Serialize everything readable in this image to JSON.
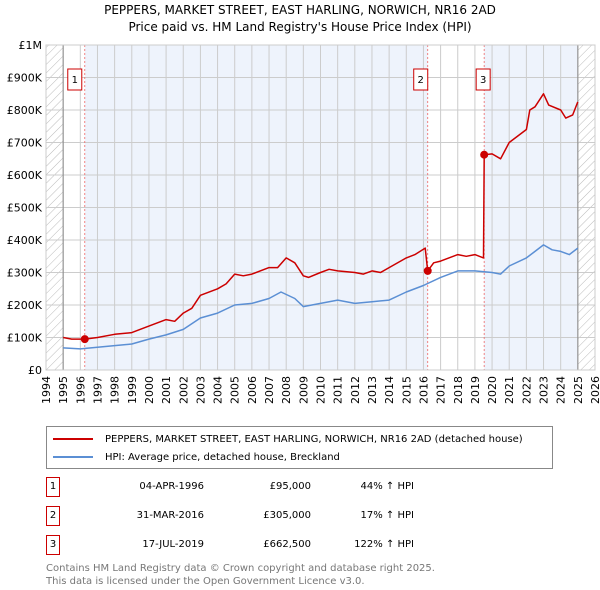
{
  "chart_data": {
    "type": "line",
    "title": "PEPPERS, MARKET STREET, EAST HARLING, NORWICH, NR16 2AD",
    "subtitle": "Price paid vs. HM Land Registry's House Price Index (HPI)",
    "xlim": [
      1994,
      2026
    ],
    "ylim": [
      0,
      1000000
    ],
    "x_ticks": [
      "1994",
      "1995",
      "1996",
      "1997",
      "1998",
      "1999",
      "2000",
      "2001",
      "2002",
      "2003",
      "2004",
      "2005",
      "2006",
      "2007",
      "2008",
      "2009",
      "2010",
      "2011",
      "2012",
      "2013",
      "2014",
      "2015",
      "2016",
      "2017",
      "2018",
      "2019",
      "2020",
      "2021",
      "2022",
      "2023",
      "2024",
      "2025",
      "2026"
    ],
    "y_ticks": [
      {
        "v": 0,
        "label": "£0"
      },
      {
        "v": 100000,
        "label": "£100K"
      },
      {
        "v": 200000,
        "label": "£200K"
      },
      {
        "v": 300000,
        "label": "£300K"
      },
      {
        "v": 400000,
        "label": "£400K"
      },
      {
        "v": 500000,
        "label": "£500K"
      },
      {
        "v": 600000,
        "label": "£600K"
      },
      {
        "v": 700000,
        "label": "£700K"
      },
      {
        "v": 800000,
        "label": "£800K"
      },
      {
        "v": 900000,
        "label": "£900K"
      },
      {
        "v": 1000000,
        "label": "£1M"
      }
    ],
    "grid": true,
    "colors": {
      "property": "#cc0000",
      "hpi": "#5b8fd4",
      "shade": "#eef3fc"
    },
    "series": [
      {
        "name": "PEPPERS, MARKET STREET, EAST HARLING, NORWICH, NR16 2AD (detached house)",
        "color": "#cc0000",
        "x": [
          1995,
          1995.5,
          1996.26,
          1997,
          1998,
          1999,
          2000,
          2001,
          2001.5,
          2002,
          2002.5,
          2003,
          2004,
          2004.5,
          2005,
          2005.5,
          2006,
          2007,
          2007.5,
          2008,
          2008.5,
          2009,
          2009.3,
          2010,
          2010.5,
          2011,
          2012,
          2012.5,
          2013,
          2013.5,
          2014,
          2015,
          2015.5,
          2016.1,
          2016.25,
          2016.6,
          2017,
          2018,
          2018.5,
          2019,
          2019.5,
          2019.54,
          2020,
          2020.5,
          2021,
          2021.5,
          2022,
          2022.2,
          2022.5,
          2023,
          2023.3,
          2024,
          2024.3,
          2024.7,
          2025
        ],
        "y": [
          100000,
          95000,
          95000,
          100000,
          110000,
          115000,
          135000,
          155000,
          150000,
          175000,
          190000,
          230000,
          250000,
          265000,
          295000,
          290000,
          295000,
          315000,
          315000,
          345000,
          330000,
          290000,
          285000,
          300000,
          310000,
          305000,
          300000,
          295000,
          305000,
          300000,
          315000,
          345000,
          355000,
          375000,
          305000,
          330000,
          335000,
          355000,
          350000,
          355000,
          345000,
          662500,
          665000,
          650000,
          700000,
          720000,
          740000,
          800000,
          810000,
          850000,
          815000,
          800000,
          775000,
          785000,
          825000
        ]
      },
      {
        "name": "HPI: Average price, detached house, Breckland",
        "color": "#5b8fd4",
        "x": [
          1995,
          1996,
          1997,
          1998,
          1999,
          2000,
          2001,
          2002,
          2003,
          2004,
          2005,
          2006,
          2007,
          2007.7,
          2008.5,
          2009,
          2010,
          2011,
          2012,
          2013,
          2014,
          2015,
          2016,
          2017,
          2018,
          2019,
          2020,
          2020.5,
          2021,
          2022,
          2022.5,
          2023,
          2023.5,
          2024,
          2024.5,
          2025
        ],
        "y": [
          68000,
          65000,
          70000,
          75000,
          80000,
          95000,
          108000,
          125000,
          160000,
          175000,
          200000,
          205000,
          220000,
          240000,
          220000,
          195000,
          205000,
          215000,
          205000,
          210000,
          215000,
          240000,
          260000,
          285000,
          305000,
          305000,
          300000,
          295000,
          320000,
          345000,
          365000,
          385000,
          370000,
          365000,
          355000,
          375000
        ]
      }
    ],
    "sales": [
      {
        "n": "1",
        "x": 1996.26,
        "y": 95000,
        "date": "04-APR-1996",
        "price": "£95,000",
        "hpi": "44% ↑ HPI"
      },
      {
        "n": "2",
        "x": 2016.25,
        "y": 305000,
        "date": "31-MAR-2016",
        "price": "£305,000",
        "hpi": "17% ↑ HPI"
      },
      {
        "n": "3",
        "x": 2019.54,
        "y": 662500,
        "date": "17-JUL-2019",
        "price": "£662,500",
        "hpi": "122% ↑ HPI"
      }
    ],
    "hatched_before": 1995,
    "hatched_after": 2025
  },
  "footer": {
    "line1": "Contains HM Land Registry data © Crown copyright and database right 2025.",
    "line2": "This data is licensed under the Open Government Licence v3.0."
  }
}
